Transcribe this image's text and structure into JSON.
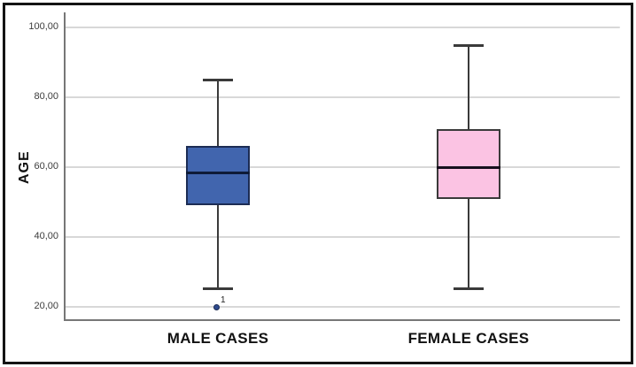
{
  "chart_data": {
    "type": "boxplot",
    "title": "",
    "ylabel": "AGE",
    "xlabel": "",
    "grid": true,
    "legend": "none",
    "ylim": [
      16.5,
      104
    ],
    "yticks": [
      {
        "value": 100,
        "label": "100,00"
      },
      {
        "value": 80,
        "label": "80,00"
      },
      {
        "value": 60,
        "label": "60,00"
      },
      {
        "value": 40,
        "label": "40,00"
      },
      {
        "value": 20,
        "label": "20,00"
      }
    ],
    "series": [
      {
        "name": "MALE CASES",
        "whisker_low": 25,
        "q1": 49,
        "median": 58.5,
        "q3": 66,
        "whisker_high": 85,
        "outliers": [
          {
            "value": 20,
            "label": "1"
          }
        ],
        "fill_color": "#4165AE",
        "box_border_color": "#1C2C54",
        "median_color": "#0E1B38"
      },
      {
        "name": "FEMALE CASES",
        "whisker_low": 25,
        "q1": 51,
        "median": 60,
        "q3": 71,
        "whisker_high": 95,
        "outliers": [],
        "fill_color": "#FBC3E3",
        "box_border_color": "#3A3A3A",
        "median_color": "#17101E"
      }
    ],
    "colors": {
      "whisker": "#3A3A3A",
      "gridline": "#D8D8D8",
      "axis": "#777777",
      "outlier_dot": "#2F4B8F",
      "plot_background": "#FFFFFF",
      "frame_border": "#141414"
    }
  }
}
